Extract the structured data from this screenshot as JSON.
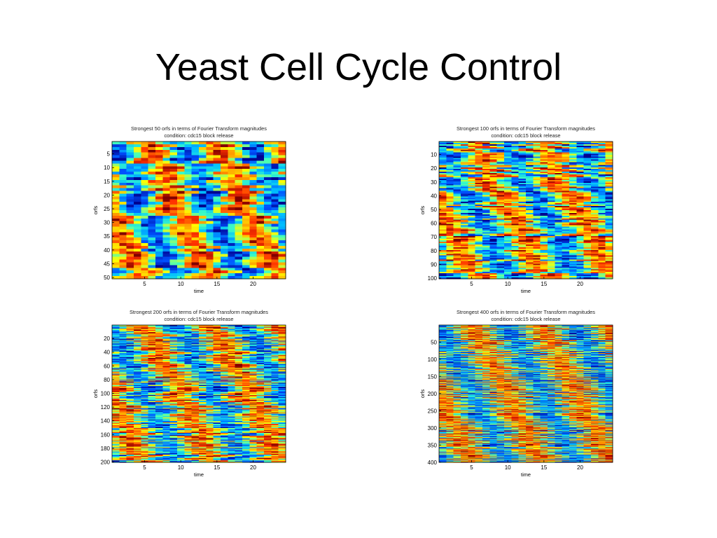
{
  "slide": {
    "title": "Yeast Cell Cycle Control"
  },
  "colormap": [
    "#00008f",
    "#0050ff",
    "#00bfff",
    "#40ffbf",
    "#ffff00",
    "#ff9f00",
    "#ff3000",
    "#800000"
  ],
  "chart_data": [
    {
      "type": "heatmap",
      "title": "Strongest 50 orfs in terms of Fourier Transform magnitudes",
      "subtitle": "condition: cdc15 block release",
      "xlabel": "time",
      "ylabel": "orfs",
      "n_rows": 50,
      "n_cols": 24,
      "xticks": [
        5,
        10,
        15,
        20
      ],
      "yticks": [
        5,
        10,
        15,
        20,
        25,
        30,
        35,
        40,
        45,
        50
      ],
      "seed": 11
    },
    {
      "type": "heatmap",
      "title": "Strongest 100 orfs in terms of Fourier Transform magnitudes",
      "subtitle": "condition: cdc15 block release",
      "xlabel": "time",
      "ylabel": "orfs",
      "n_rows": 100,
      "n_cols": 24,
      "xticks": [
        5,
        10,
        15,
        20
      ],
      "yticks": [
        10,
        20,
        30,
        40,
        50,
        60,
        70,
        80,
        90,
        100
      ],
      "seed": 23
    },
    {
      "type": "heatmap",
      "title": "Strongest 200 orfs in terms of Fourier Transform magnitudes",
      "subtitle": "condition: cdc15 block release",
      "xlabel": "time",
      "ylabel": "orfs",
      "n_rows": 200,
      "n_cols": 24,
      "xticks": [
        5,
        10,
        15,
        20
      ],
      "yticks": [
        20,
        40,
        60,
        80,
        100,
        120,
        140,
        160,
        180,
        200
      ],
      "seed": 37
    },
    {
      "type": "heatmap",
      "title": "Strongest 400 orfs in terms of Fourier Transform magnitudes",
      "subtitle": "condition: cdc15 block release",
      "xlabel": "time",
      "ylabel": "orfs",
      "n_rows": 400,
      "n_cols": 24,
      "xticks": [
        5,
        10,
        15,
        20
      ],
      "yticks": [
        50,
        100,
        150,
        200,
        250,
        300,
        350,
        400
      ],
      "seed": 53
    }
  ]
}
